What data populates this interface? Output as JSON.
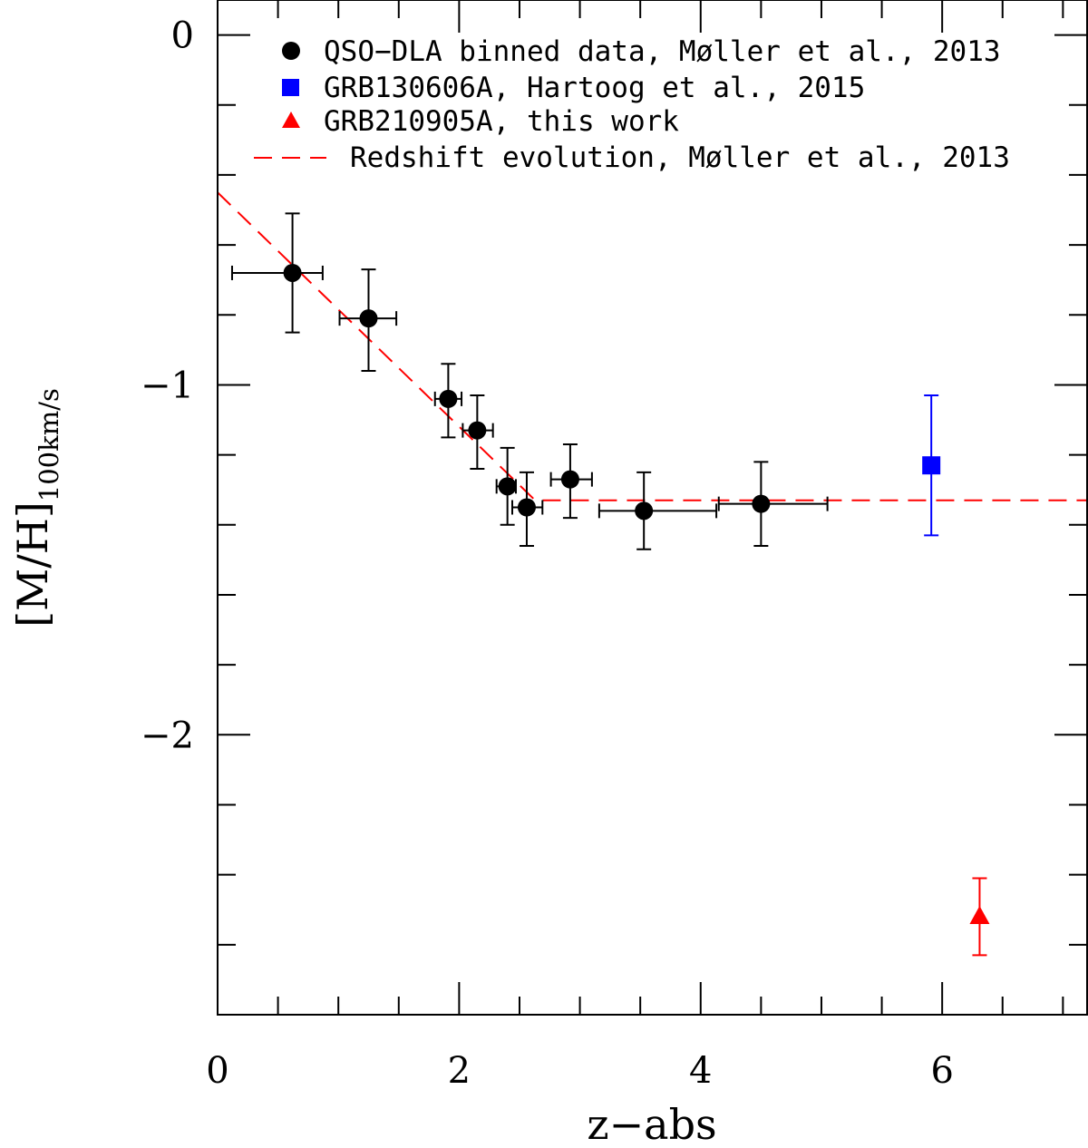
{
  "chart_data": {
    "type": "scatter",
    "title": "",
    "xlabel": "z−abs",
    "ylabel_main": "[M/H]",
    "ylabel_sub": "100km/s",
    "xlim": [
      0,
      7.2
    ],
    "ylim": [
      -2.8,
      0.1
    ],
    "x_ticks": [
      0,
      2,
      4,
      6
    ],
    "x_tick_labels": [
      "0",
      "2",
      "4",
      "6"
    ],
    "x_minor_step": 0.5,
    "y_ticks": [
      0,
      -1,
      -2
    ],
    "y_tick_labels": [
      "0",
      "−1",
      "−2"
    ],
    "y_minor_step": 0.2,
    "legend": [
      {
        "symbol": "circle",
        "color": "#000000",
        "label": "QSO−DLA binned data, Møller et al., 2013"
      },
      {
        "symbol": "square",
        "color": "#0000ff",
        "label": "GRB130606A, Hartoog et al., 2015"
      },
      {
        "symbol": "triangle",
        "color": "#ff0000",
        "label": "GRB210905A, this work"
      },
      {
        "symbol": "dashed",
        "color": "#ff0000",
        "label": "Redshift evolution, Møller et al., 2013"
      }
    ],
    "series": [
      {
        "name": "QSO-DLA binned data, Møller et al., 2013",
        "marker": "circle",
        "color": "#000000",
        "points": [
          {
            "x": 0.62,
            "y": -0.68,
            "xlo": 0.12,
            "xhi": 0.87,
            "ylo": -0.85,
            "yhi": -0.51
          },
          {
            "x": 1.25,
            "y": -0.81,
            "xlo": 1.01,
            "xhi": 1.48,
            "ylo": -0.96,
            "yhi": -0.67
          },
          {
            "x": 1.91,
            "y": -1.04,
            "xlo": 1.8,
            "xhi": 2.02,
            "ylo": -1.15,
            "yhi": -0.94
          },
          {
            "x": 2.15,
            "y": -1.13,
            "xlo": 2.03,
            "xhi": 2.28,
            "ylo": -1.24,
            "yhi": -1.03
          },
          {
            "x": 2.4,
            "y": -1.29,
            "xlo": 2.31,
            "xhi": 2.47,
            "ylo": -1.4,
            "yhi": -1.18
          },
          {
            "x": 2.56,
            "y": -1.35,
            "xlo": 2.44,
            "xhi": 2.69,
            "ylo": -1.46,
            "yhi": -1.25
          },
          {
            "x": 2.92,
            "y": -1.27,
            "xlo": 2.76,
            "xhi": 3.1,
            "ylo": -1.38,
            "yhi": -1.17
          },
          {
            "x": 3.53,
            "y": -1.36,
            "xlo": 3.16,
            "xhi": 4.13,
            "ylo": -1.47,
            "yhi": -1.25
          },
          {
            "x": 4.5,
            "y": -1.34,
            "xlo": 4.15,
            "xhi": 5.05,
            "ylo": -1.46,
            "yhi": -1.22
          }
        ]
      },
      {
        "name": "GRB130606A, Hartoog et al., 2015",
        "marker": "square",
        "color": "#0000ff",
        "points": [
          {
            "x": 5.91,
            "y": -1.23,
            "ylo": -1.43,
            "yhi": -1.03
          }
        ]
      },
      {
        "name": "GRB210905A, this work",
        "marker": "triangle",
        "color": "#ff0000",
        "points": [
          {
            "x": 6.31,
            "y": -2.52,
            "ylo": -2.63,
            "yhi": -2.41
          }
        ]
      }
    ],
    "trend_line": {
      "name": "Redshift evolution, Møller et al., 2013",
      "color": "#ff0000",
      "style": "dashed",
      "points": [
        [
          0,
          -0.45
        ],
        [
          2.63,
          -1.33
        ],
        [
          7.2,
          -1.33
        ]
      ]
    }
  }
}
